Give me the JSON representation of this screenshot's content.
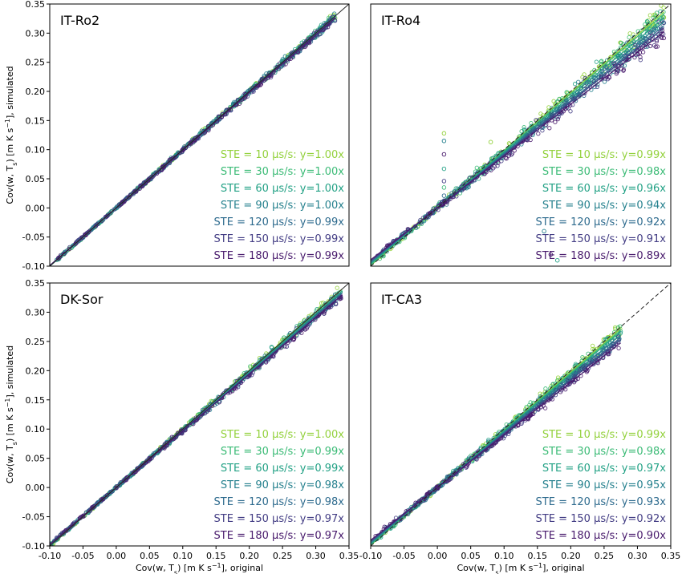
{
  "legend_template": "STE = {ste} μs/s: y={slope}x",
  "ste_values": [
    10,
    30,
    60,
    90,
    120,
    150,
    180
  ],
  "ste_colors": [
    "#93d13c",
    "#3bbb76",
    "#22a185",
    "#26818e",
    "#2e6b8e",
    "#433d84",
    "#481a6c"
  ],
  "chart_data": [
    {
      "type": "scatter",
      "title": "IT-Ro2",
      "xlabel": "",
      "ylabel": "Cov(w, Ts) [m K s⁻¹], simulated",
      "xlim": [
        -0.1,
        0.35
      ],
      "ylim": [
        -0.1,
        0.35
      ],
      "x_ticks": [
        "-0.10",
        "-0.05",
        "0.00",
        "0.05",
        "0.10",
        "0.15",
        "0.20",
        "0.25",
        "0.30",
        "0.35"
      ],
      "y_ticks": [
        "-0.10",
        "-0.05",
        "0.00",
        "0.05",
        "0.10",
        "0.15",
        "0.20",
        "0.25",
        "0.30",
        "0.35"
      ],
      "show_x_ticks": false,
      "show_y_ticks": true,
      "one_to_one_line": "solid",
      "data_range": [
        -0.09,
        0.33
      ],
      "spread": 0.004,
      "outliers": [],
      "series": [
        {
          "ste": 10,
          "slope": "1.00",
          "b": 1.0
        },
        {
          "ste": 30,
          "slope": "1.00",
          "b": 1.0
        },
        {
          "ste": 60,
          "slope": "1.00",
          "b": 1.0
        },
        {
          "ste": 90,
          "slope": "1.00",
          "b": 1.0
        },
        {
          "ste": 120,
          "slope": "0.99",
          "b": 0.99
        },
        {
          "ste": 150,
          "slope": "0.99",
          "b": 0.99
        },
        {
          "ste": 180,
          "slope": "0.99",
          "b": 0.99
        }
      ]
    },
    {
      "type": "scatter",
      "title": "IT-Ro4",
      "xlabel": "",
      "ylabel": "",
      "xlim": [
        -0.1,
        0.35
      ],
      "ylim": [
        -0.1,
        0.35
      ],
      "x_ticks": [],
      "y_ticks": [],
      "show_x_ticks": false,
      "show_y_ticks": false,
      "one_to_one_line": "dashed",
      "data_range": [
        -0.09,
        0.34
      ],
      "spread": 0.012,
      "outliers": [
        [
          0.01,
          0.128
        ],
        [
          0.01,
          0.115
        ],
        [
          0.01,
          0.092
        ],
        [
          0.01,
          0.067
        ],
        [
          0.01,
          0.046
        ],
        [
          0.01,
          0.035
        ],
        [
          0.01,
          0.021
        ],
        [
          0.08,
          0.113
        ],
        [
          0.16,
          -0.04
        ],
        [
          0.17,
          -0.08
        ],
        [
          0.18,
          -0.09
        ]
      ],
      "series": [
        {
          "ste": 10,
          "slope": "0.99",
          "b": 0.99
        },
        {
          "ste": 30,
          "slope": "0.98",
          "b": 0.98
        },
        {
          "ste": 60,
          "slope": "0.96",
          "b": 0.96
        },
        {
          "ste": 90,
          "slope": "0.94",
          "b": 0.94
        },
        {
          "ste": 120,
          "slope": "0.92",
          "b": 0.92
        },
        {
          "ste": 150,
          "slope": "0.91",
          "b": 0.91
        },
        {
          "ste": 180,
          "slope": "0.89",
          "b": 0.89
        }
      ]
    },
    {
      "type": "scatter",
      "title": "DK-Sor",
      "xlabel": "Cov(w, Ts) [m K s⁻¹], original",
      "ylabel": "Cov(w, Ts) [m K s⁻¹], simulated",
      "xlim": [
        -0.1,
        0.35
      ],
      "ylim": [
        -0.1,
        0.35
      ],
      "x_ticks": [
        "-0.10",
        "-0.05",
        "0.00",
        "0.05",
        "0.10",
        "0.15",
        "0.20",
        "0.25",
        "0.30",
        "0.35"
      ],
      "y_ticks": [
        "-0.10",
        "-0.05",
        "0.00",
        "0.05",
        "0.10",
        "0.15",
        "0.20",
        "0.25",
        "0.30",
        "0.35"
      ],
      "show_x_ticks": true,
      "show_y_ticks": true,
      "one_to_one_line": "solid",
      "data_range": [
        -0.1,
        0.34
      ],
      "spread": 0.005,
      "outliers": [],
      "series": [
        {
          "ste": 10,
          "slope": "1.00",
          "b": 1.0
        },
        {
          "ste": 30,
          "slope": "0.99",
          "b": 0.99
        },
        {
          "ste": 60,
          "slope": "0.99",
          "b": 0.99
        },
        {
          "ste": 90,
          "slope": "0.98",
          "b": 0.98
        },
        {
          "ste": 120,
          "slope": "0.98",
          "b": 0.98
        },
        {
          "ste": 150,
          "slope": "0.97",
          "b": 0.97
        },
        {
          "ste": 180,
          "slope": "0.97",
          "b": 0.97
        }
      ]
    },
    {
      "type": "scatter",
      "title": "IT-CA3",
      "xlabel": "Cov(w, Ts) [m K s⁻¹], original",
      "ylabel": "",
      "xlim": [
        -0.1,
        0.35
      ],
      "ylim": [
        -0.1,
        0.35
      ],
      "x_ticks": [
        "-0.10",
        "-0.05",
        "0.00",
        "0.05",
        "0.10",
        "0.15",
        "0.20",
        "0.25",
        "0.30",
        "0.35"
      ],
      "y_ticks": [],
      "show_x_ticks": true,
      "show_y_ticks": false,
      "one_to_one_line": "dashed",
      "data_range": [
        -0.095,
        0.275
      ],
      "spread": 0.009,
      "outliers": [],
      "series": [
        {
          "ste": 10,
          "slope": "0.99",
          "b": 0.99
        },
        {
          "ste": 30,
          "slope": "0.98",
          "b": 0.98
        },
        {
          "ste": 60,
          "slope": "0.97",
          "b": 0.97
        },
        {
          "ste": 90,
          "slope": "0.95",
          "b": 0.95
        },
        {
          "ste": 120,
          "slope": "0.93",
          "b": 0.93
        },
        {
          "ste": 150,
          "slope": "0.92",
          "b": 0.92
        },
        {
          "ste": 180,
          "slope": "0.90",
          "b": 0.9
        }
      ]
    }
  ]
}
